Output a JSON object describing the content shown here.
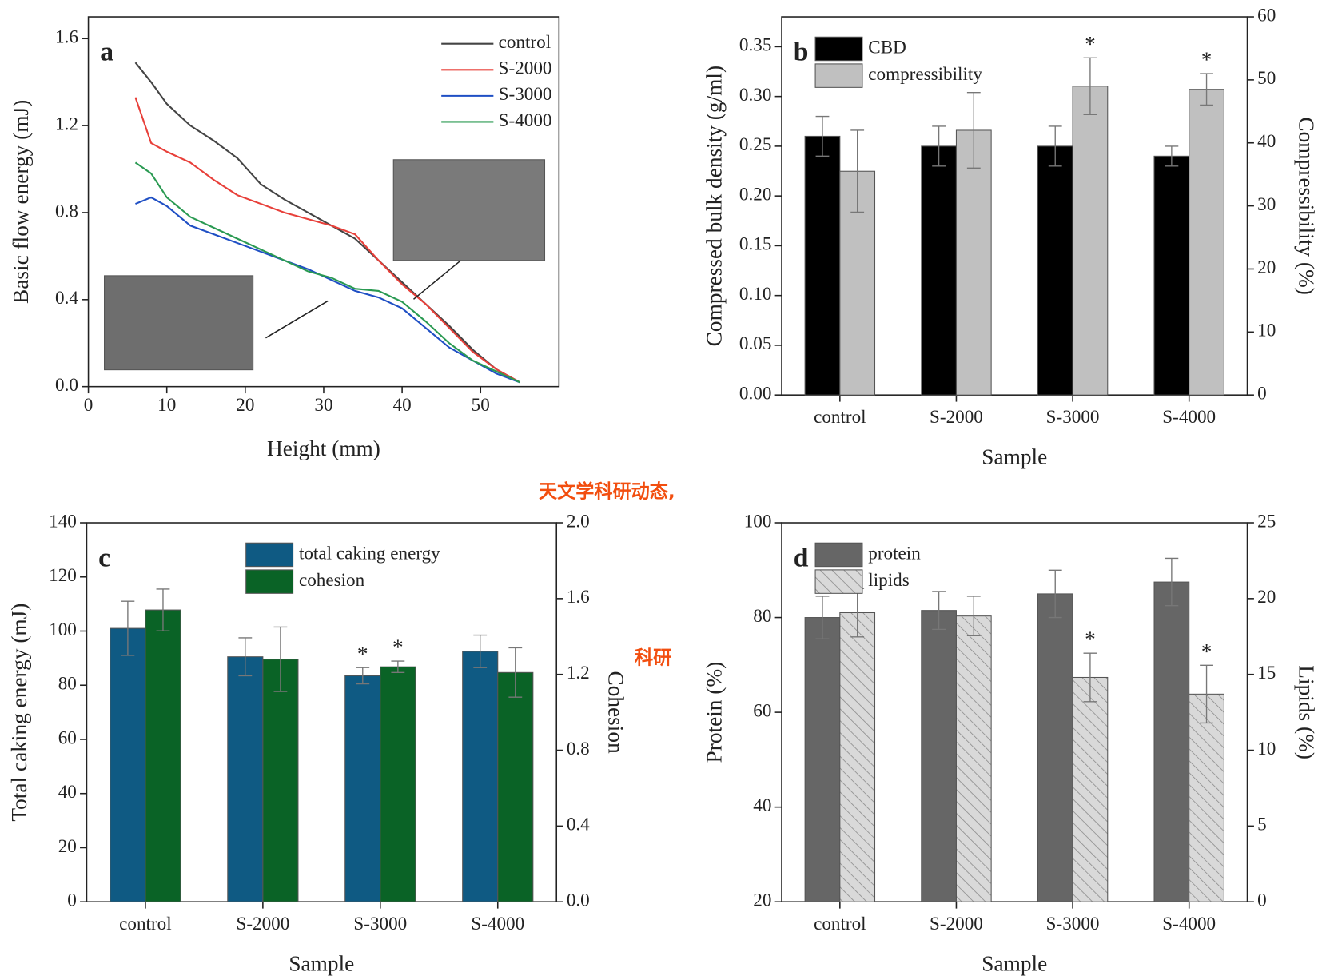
{
  "chart_data": [
    {
      "type": "line",
      "panel_label": "a",
      "xlabel": "Height (mm)",
      "ylabel": "Basic flow energy (mJ)",
      "xlim": [
        0,
        60
      ],
      "xticks": [
        0,
        10,
        20,
        30,
        40,
        50
      ],
      "ylim": [
        0,
        1.7
      ],
      "yticks": [
        {
          "value": 0,
          "label": "0.0"
        },
        {
          "value": 0.4,
          "label": "0.4"
        },
        {
          "value": 0.8,
          "label": "0.8"
        },
        {
          "value": 1.2,
          "label": "1.2"
        },
        {
          "value": 1.6,
          "label": "1.6"
        }
      ],
      "legend": "upper right",
      "x": [
        6,
        8,
        10,
        13,
        16,
        19,
        22,
        25,
        28,
        31,
        34,
        37,
        40,
        43,
        46,
        49,
        52,
        55
      ],
      "series": [
        {
          "name": "control",
          "color": "#444444",
          "values": [
            1.49,
            1.4,
            1.3,
            1.2,
            1.13,
            1.05,
            0.93,
            0.86,
            0.8,
            0.74,
            0.68,
            0.58,
            0.48,
            0.38,
            0.28,
            0.17,
            0.08,
            0.02
          ]
        },
        {
          "name": "S-2000",
          "color": "#e8403a",
          "values": [
            1.33,
            1.12,
            1.08,
            1.03,
            0.95,
            0.88,
            0.84,
            0.8,
            0.77,
            0.74,
            0.7,
            0.58,
            0.47,
            0.38,
            0.27,
            0.16,
            0.08,
            0.02
          ]
        },
        {
          "name": "S-3000",
          "color": "#1f4fc4",
          "values": [
            0.84,
            0.87,
            0.83,
            0.74,
            0.7,
            0.66,
            0.62,
            0.58,
            0.54,
            0.49,
            0.44,
            0.41,
            0.36,
            0.27,
            0.18,
            0.12,
            0.06,
            0.02
          ]
        },
        {
          "name": "S-4000",
          "color": "#2a9a52",
          "values": [
            1.03,
            0.98,
            0.87,
            0.78,
            0.73,
            0.68,
            0.63,
            0.58,
            0.53,
            0.5,
            0.45,
            0.44,
            0.39,
            0.3,
            0.2,
            0.12,
            0.07,
            0.02
          ]
        }
      ]
    },
    {
      "type": "bar",
      "panel_label": "b",
      "xlabel": "Sample",
      "ylabel": "Compressed bulk density (g/ml)",
      "y2label": "Compressibility (%)",
      "categories": [
        "control",
        "S-2000",
        "S-3000",
        "S-4000"
      ],
      "ylim": [
        0,
        0.38
      ],
      "yticks": [
        {
          "value": 0,
          "label": "0.00"
        },
        {
          "value": 0.05,
          "label": "0.05"
        },
        {
          "value": 0.1,
          "label": "0.10"
        },
        {
          "value": 0.15,
          "label": "0.15"
        },
        {
          "value": 0.2,
          "label": "0.20"
        },
        {
          "value": 0.25,
          "label": "0.25"
        },
        {
          "value": 0.3,
          "label": "0.30"
        },
        {
          "value": 0.35,
          "label": "0.35"
        }
      ],
      "y2lim": [
        0,
        60
      ],
      "y2ticks": [
        0,
        10,
        20,
        30,
        40,
        50,
        60
      ],
      "legend": "upper left",
      "series": [
        {
          "name": "CBD",
          "color": "#000000",
          "values": [
            0.26,
            0.25,
            0.25,
            0.24
          ],
          "errors": [
            0.02,
            0.02,
            0.02,
            0.01
          ]
        },
        {
          "name": "compressibility",
          "color": "#c0c0c0",
          "axis": "y2",
          "values": [
            35.5,
            42,
            49,
            48.5
          ],
          "errors": [
            6.5,
            6,
            4.5,
            2.5
          ],
          "markers": [
            null,
            null,
            "*",
            "*"
          ]
        }
      ]
    },
    {
      "type": "bar",
      "panel_label": "c",
      "xlabel": "Sample",
      "ylabel": "Total caking energy (mJ)",
      "y2label": "Cohesion",
      "categories": [
        "control",
        "S-2000",
        "S-3000",
        "S-4000"
      ],
      "ylim": [
        0,
        140
      ],
      "yticks": [
        0,
        20,
        40,
        60,
        80,
        100,
        120,
        140
      ],
      "y2lim": [
        0,
        2
      ],
      "y2ticks": [
        {
          "value": 0,
          "label": "0.0"
        },
        {
          "value": 0.4,
          "label": "0.4"
        },
        {
          "value": 0.8,
          "label": "0.8"
        },
        {
          "value": 1.2,
          "label": "1.2"
        },
        {
          "value": 1.6,
          "label": "1.6"
        },
        {
          "value": 2,
          "label": "2.0"
        }
      ],
      "legend": "upper center",
      "series": [
        {
          "name": "total caking energy",
          "color": "#0f5a83",
          "values": [
            101,
            90.5,
            83.5,
            92.5
          ],
          "errors": [
            10,
            7,
            3,
            6
          ],
          "markers": [
            null,
            null,
            "*",
            null
          ]
        },
        {
          "name": "cohesion",
          "color": "#0a6326",
          "axis": "y2",
          "values": [
            1.54,
            1.28,
            1.24,
            1.21
          ],
          "errors": [
            0.11,
            0.17,
            0.03,
            0.13
          ],
          "markers": [
            null,
            null,
            "*",
            null
          ]
        }
      ]
    },
    {
      "type": "bar",
      "panel_label": "d",
      "xlabel": "Sample",
      "ylabel": "Protein (%)",
      "y2label": "Lipids (%)",
      "categories": [
        "control",
        "S-2000",
        "S-3000",
        "S-4000"
      ],
      "ylim": [
        20,
        100
      ],
      "yticks": [
        20,
        40,
        60,
        80,
        100
      ],
      "y2lim": [
        0,
        25
      ],
      "y2ticks": [
        0,
        5,
        10,
        15,
        20,
        25
      ],
      "legend": "upper left",
      "series": [
        {
          "name": "protein",
          "color": "#666666",
          "values": [
            80,
            81.5,
            85,
            87.5
          ],
          "errors": [
            4.5,
            4,
            5,
            5
          ]
        },
        {
          "name": "lipids",
          "color": "#d9d9d9",
          "hatch": true,
          "axis": "y2",
          "values": [
            19.07,
            18.85,
            14.8,
            13.7
          ],
          "errors": [
            1.6,
            1.3,
            1.6,
            1.9
          ],
          "markers": [
            null,
            null,
            "*",
            "*"
          ]
        }
      ]
    }
  ],
  "overlay": {
    "line1": "天文学科研动态,",
    "line2": "科研"
  }
}
